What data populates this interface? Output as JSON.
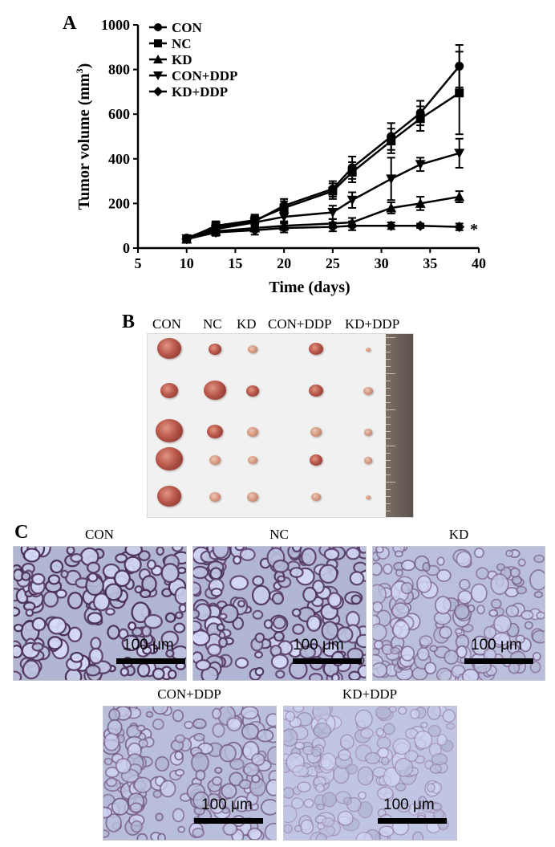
{
  "panel_labels": {
    "a": "A",
    "b": "B",
    "c": "C"
  },
  "chart_data": {
    "type": "line",
    "xlabel": "Time (days)",
    "ylabel": "Tumor volume (mm",
    "ylabel_sup": "3",
    "ylabel_close": ")",
    "xlim": [
      5,
      40
    ],
    "ylim": [
      0,
      1000
    ],
    "xticks": [
      "5",
      "10",
      "15",
      "20",
      "25",
      "30",
      "35",
      "40"
    ],
    "yticks": [
      "0",
      "200",
      "400",
      "600",
      "800",
      "1000"
    ],
    "x": [
      10,
      13,
      17,
      20,
      25,
      27,
      31,
      34,
      38
    ],
    "legend_position": "top-left",
    "annotation": "*",
    "series": [
      {
        "name": "CON",
        "marker": "circle",
        "values": [
          45,
          95,
          120,
          190,
          265,
          360,
          500,
          605,
          815
        ],
        "errors": [
          10,
          20,
          25,
          30,
          35,
          50,
          60,
          55,
          95
        ]
      },
      {
        "name": "NC",
        "marker": "square",
        "values": [
          40,
          100,
          125,
          180,
          255,
          340,
          480,
          580,
          695
        ],
        "errors": [
          10,
          20,
          25,
          30,
          35,
          45,
          55,
          55,
          185
        ]
      },
      {
        "name": "KD",
        "marker": "triangle-up",
        "values": [
          40,
          75,
          90,
          100,
          110,
          115,
          180,
          200,
          230
        ],
        "errors": [
          10,
          15,
          15,
          20,
          20,
          20,
          25,
          30,
          25
        ]
      },
      {
        "name": "CON+DDP",
        "marker": "triangle-down",
        "values": [
          42,
          85,
          115,
          140,
          160,
          215,
          310,
          375,
          425
        ],
        "errors": [
          10,
          15,
          25,
          25,
          30,
          35,
          95,
          30,
          65
        ]
      },
      {
        "name": "KD+DDP",
        "marker": "diamond",
        "values": [
          40,
          70,
          80,
          90,
          95,
          100,
          100,
          100,
          95
        ],
        "errors": [
          10,
          15,
          20,
          20,
          20,
          20,
          15,
          10,
          15
        ]
      }
    ]
  },
  "photo": {
    "columns": [
      "CON",
      "NC",
      "KD",
      "CON+DDP",
      "KD+DDP"
    ]
  },
  "ihc": {
    "scale": "100 μm",
    "panels": [
      {
        "label": "CON"
      },
      {
        "label": "NC"
      },
      {
        "label": "KD"
      },
      {
        "label": "CON+DDP"
      },
      {
        "label": "KD+DDP"
      }
    ]
  }
}
